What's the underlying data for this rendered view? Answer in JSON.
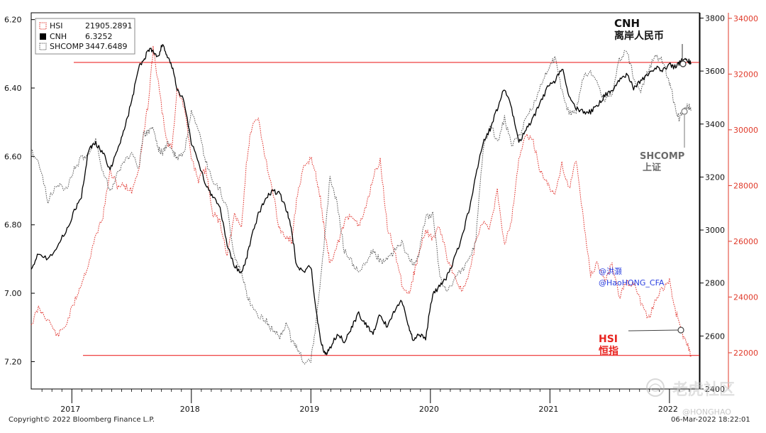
{
  "chart_data": {
    "type": "line",
    "x_ticks": [
      "2017",
      "2018",
      "2019",
      "2020",
      "2021",
      "2022"
    ],
    "axes": {
      "cnh": {
        "side": "left",
        "inverted": true,
        "ylim": [
          7.28,
          6.18
        ],
        "ticks": [
          "6.20",
          "6.40",
          "6.60",
          "6.80",
          "7.00",
          "7.20"
        ]
      },
      "shcomp": {
        "side": "right",
        "ylim": [
          2400,
          3820
        ],
        "ticks": [
          "2400",
          "2600",
          "2800",
          "3000",
          "3200",
          "3400",
          "3600",
          "3800"
        ]
      },
      "hsi": {
        "side": "right-outer",
        "ylim": [
          20700,
          34200
        ],
        "ticks": [
          "22000",
          "24000",
          "26000",
          "28000",
          "30000",
          "32000",
          "34000"
        ]
      }
    },
    "legend": [
      {
        "name": "HSI",
        "value": "21905.2891",
        "color": "#e0302a",
        "style": "dotted"
      },
      {
        "name": "CNH",
        "value": "6.3252",
        "color": "#000000",
        "style": "solid"
      },
      {
        "name": "SHCOMP",
        "value": "3447.6489",
        "color": "#555555",
        "style": "dotted"
      }
    ],
    "series": [
      {
        "name": "CNH",
        "axis": "cnh",
        "x": [
          2016.66,
          2016.72,
          2016.8,
          2016.88,
          2016.95,
          2017.02,
          2017.08,
          2017.14,
          2017.2,
          2017.26,
          2017.32,
          2017.38,
          2017.44,
          2017.5,
          2017.56,
          2017.6,
          2017.64,
          2017.68,
          2017.72,
          2017.76,
          2017.8,
          2017.84,
          2017.88,
          2017.94,
          2018.0,
          2018.06,
          2018.12,
          2018.18,
          2018.24,
          2018.3,
          2018.36,
          2018.42,
          2018.46,
          2018.5,
          2018.56,
          2018.62,
          2018.68,
          2018.74,
          2018.8,
          2018.84,
          2018.88,
          2018.94,
          2019.0,
          2019.04,
          2019.08,
          2019.12,
          2019.16,
          2019.22,
          2019.28,
          2019.34,
          2019.4,
          2019.46,
          2019.52,
          2019.58,
          2019.64,
          2019.7,
          2019.76,
          2019.82,
          2019.86,
          2019.9,
          2019.96,
          2020.02,
          2020.08,
          2020.14,
          2020.2,
          2020.26,
          2020.32,
          2020.38,
          2020.44,
          2020.5,
          2020.56,
          2020.62,
          2020.68,
          2020.74,
          2020.8,
          2020.86,
          2020.92,
          2020.98,
          2021.04,
          2021.1,
          2021.16,
          2021.22,
          2021.28,
          2021.34,
          2021.4,
          2021.46,
          2021.52,
          2021.58,
          2021.64,
          2021.7,
          2021.76,
          2021.82,
          2021.88,
          2021.94,
          2022.0,
          2022.04,
          2022.08,
          2022.12,
          2022.16,
          2022.18
        ],
        "y": [
          6.93,
          6.88,
          6.9,
          6.86,
          6.82,
          6.76,
          6.72,
          6.58,
          6.56,
          6.59,
          6.64,
          6.58,
          6.52,
          6.44,
          6.34,
          6.32,
          6.29,
          6.29,
          6.31,
          6.27,
          6.31,
          6.34,
          6.4,
          6.44,
          6.56,
          6.62,
          6.68,
          6.72,
          6.75,
          6.86,
          6.92,
          6.94,
          6.9,
          6.84,
          6.77,
          6.72,
          6.7,
          6.71,
          6.76,
          6.82,
          6.92,
          6.94,
          6.92,
          7.04,
          7.14,
          7.18,
          7.16,
          7.12,
          7.14,
          7.1,
          7.06,
          7.09,
          7.12,
          7.06,
          7.1,
          7.05,
          7.02,
          7.1,
          7.14,
          7.12,
          7.13,
          7.0,
          6.98,
          6.95,
          6.9,
          6.84,
          6.76,
          6.66,
          6.56,
          6.52,
          6.46,
          6.4,
          6.46,
          6.56,
          6.52,
          6.49,
          6.44,
          6.4,
          6.38,
          6.34,
          6.42,
          6.46,
          6.47,
          6.47,
          6.45,
          6.42,
          6.41,
          6.38,
          6.36,
          6.4,
          6.38,
          6.36,
          6.34,
          6.35,
          6.33,
          6.34,
          6.33,
          6.31,
          6.32,
          6.33
        ]
      },
      {
        "name": "SHCOMP",
        "axis": "shcomp",
        "x": [
          2016.66,
          2016.72,
          2016.8,
          2016.88,
          2016.95,
          2017.02,
          2017.08,
          2017.14,
          2017.2,
          2017.26,
          2017.32,
          2017.38,
          2017.44,
          2017.5,
          2017.56,
          2017.6,
          2017.64,
          2017.68,
          2017.72,
          2017.76,
          2017.8,
          2017.84,
          2017.88,
          2017.94,
          2018.0,
          2018.06,
          2018.12,
          2018.18,
          2018.24,
          2018.3,
          2018.36,
          2018.42,
          2018.46,
          2018.5,
          2018.56,
          2018.62,
          2018.68,
          2018.74,
          2018.8,
          2018.84,
          2018.88,
          2018.94,
          2019.0,
          2019.04,
          2019.08,
          2019.12,
          2019.16,
          2019.22,
          2019.28,
          2019.34,
          2019.4,
          2019.46,
          2019.52,
          2019.58,
          2019.64,
          2019.7,
          2019.76,
          2019.82,
          2019.86,
          2019.9,
          2019.96,
          2020.02,
          2020.08,
          2020.14,
          2020.2,
          2020.26,
          2020.32,
          2020.38,
          2020.44,
          2020.5,
          2020.56,
          2020.62,
          2020.68,
          2020.74,
          2020.8,
          2020.86,
          2020.92,
          2020.98,
          2021.04,
          2021.1,
          2021.16,
          2021.22,
          2021.28,
          2021.34,
          2021.4,
          2021.46,
          2021.52,
          2021.58,
          2021.64,
          2021.7,
          2021.76,
          2021.82,
          2021.88,
          2021.94,
          2022.0,
          2022.04,
          2022.08,
          2022.12,
          2022.16,
          2022.18
        ],
        "y": [
          3300,
          3260,
          3110,
          3180,
          3150,
          3230,
          3270,
          3290,
          3340,
          3220,
          3150,
          3210,
          3260,
          3290,
          3240,
          3360,
          3370,
          3390,
          3310,
          3290,
          3330,
          3300,
          3270,
          3290,
          3440,
          3370,
          3260,
          3180,
          3150,
          3080,
          2900,
          2840,
          2760,
          2720,
          2680,
          2660,
          2620,
          2600,
          2650,
          2580,
          2560,
          2500,
          2510,
          2640,
          2800,
          2990,
          3200,
          3100,
          2920,
          2880,
          2840,
          2870,
          2930,
          2880,
          2890,
          2920,
          2950,
          2900,
          2870,
          2900,
          3050,
          3060,
          2820,
          2760,
          2820,
          2850,
          2880,
          2960,
          3300,
          3400,
          3330,
          3420,
          3320,
          3350,
          3420,
          3470,
          3540,
          3600,
          3650,
          3530,
          3440,
          3450,
          3580,
          3600,
          3550,
          3480,
          3520,
          3640,
          3680,
          3580,
          3520,
          3600,
          3660,
          3640,
          3560,
          3480,
          3420,
          3460,
          3470,
          3450
        ]
      },
      {
        "name": "HSI",
        "axis": "hsi",
        "x": [
          2016.66,
          2016.72,
          2016.8,
          2016.88,
          2016.95,
          2017.02,
          2017.08,
          2017.14,
          2017.2,
          2017.26,
          2017.32,
          2017.38,
          2017.44,
          2017.5,
          2017.56,
          2017.6,
          2017.64,
          2017.68,
          2017.72,
          2017.76,
          2017.8,
          2017.84,
          2017.88,
          2017.94,
          2018.0,
          2018.06,
          2018.12,
          2018.18,
          2018.24,
          2018.3,
          2018.36,
          2018.42,
          2018.46,
          2018.5,
          2018.56,
          2018.62,
          2018.68,
          2018.74,
          2018.8,
          2018.84,
          2018.88,
          2018.94,
          2019.0,
          2019.04,
          2019.08,
          2019.12,
          2019.16,
          2019.22,
          2019.28,
          2019.34,
          2019.4,
          2019.46,
          2019.52,
          2019.58,
          2019.64,
          2019.7,
          2019.76,
          2019.82,
          2019.86,
          2019.9,
          2019.96,
          2020.02,
          2020.08,
          2020.14,
          2020.2,
          2020.26,
          2020.32,
          2020.38,
          2020.44,
          2020.5,
          2020.56,
          2020.62,
          2020.68,
          2020.74,
          2020.8,
          2020.86,
          2020.92,
          2020.98,
          2021.04,
          2021.1,
          2021.16,
          2021.22,
          2021.28,
          2021.34,
          2021.4,
          2021.46,
          2021.52,
          2021.58,
          2021.64,
          2021.7,
          2021.76,
          2021.82,
          2021.88,
          2021.94,
          2022.0,
          2022.04,
          2022.08,
          2022.12,
          2022.16,
          2022.18
        ],
        "y": [
          23000,
          23600,
          23200,
          22600,
          23000,
          23800,
          24500,
          25200,
          26200,
          26900,
          28500,
          28000,
          28000,
          27800,
          28600,
          29800,
          31000,
          32900,
          31800,
          30500,
          29500,
          29400,
          31500,
          30800,
          29000,
          28200,
          28600,
          27000,
          26700,
          25500,
          26900,
          26500,
          28800,
          30000,
          30400,
          29000,
          27800,
          26400,
          26100,
          26000,
          27500,
          28600,
          29000,
          28400,
          27500,
          26200,
          25200,
          25800,
          26700,
          27000,
          26500,
          27200,
          28300,
          28900,
          26500,
          25700,
          24500,
          24100,
          24800,
          25500,
          26400,
          26100,
          26500,
          25400,
          24800,
          24200,
          24700,
          26000,
          26700,
          26500,
          27800,
          25900,
          26800,
          29000,
          29800,
          29600,
          28500,
          28100,
          27600,
          28800,
          27900,
          28900,
          26800,
          24800,
          25200,
          24600,
          25200,
          24000,
          24500,
          24500,
          23800,
          23200,
          23800,
          24300,
          24600,
          23600,
          23200,
          22500,
          22200,
          21900
        ]
      }
    ],
    "reference_lines": [
      {
        "axis": "cnh",
        "value": 6.3252,
        "color": "#ee2b2b"
      },
      {
        "axis": "hsi",
        "value": 21905.2891,
        "color": "#ee2b2b"
      }
    ],
    "annotations": [
      {
        "id": "cnh",
        "lines": [
          "CNH",
          "离岸人民币"
        ],
        "color": "#111111"
      },
      {
        "id": "shcomp",
        "lines": [
          "SHCOMP",
          "上证"
        ],
        "color": "#666666"
      },
      {
        "id": "hsi",
        "lines": [
          "HSI",
          "恒指"
        ],
        "color": "#e8231e"
      }
    ],
    "handle": [
      "@洪灏",
      "@HaoHONG_CFA"
    ]
  },
  "footer": {
    "copyright": "Copyright© 2022 Bloomberg Finance L.P.",
    "timestamp": "06-Mar-2022 18:22:01"
  },
  "watermark": {
    "text": "老虎社区",
    "handle": "@HONGHAO"
  }
}
